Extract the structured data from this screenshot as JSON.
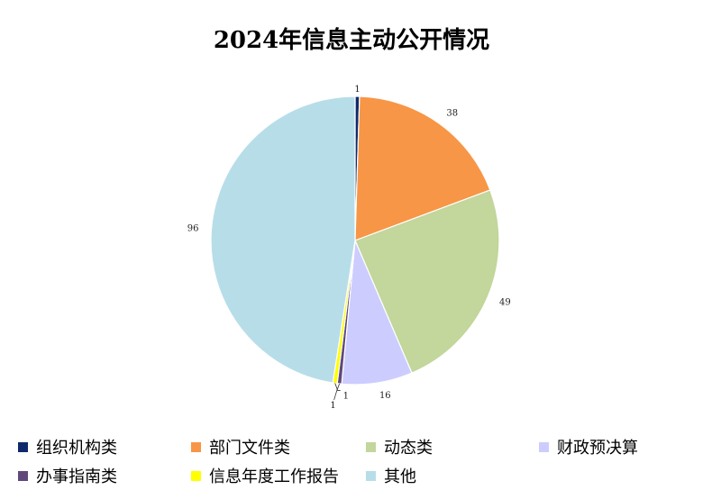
{
  "chart_data": {
    "type": "pie",
    "title": "2024年信息主动公开情况",
    "categories": [
      "组织机构类",
      "部门文件类",
      "动态类",
      "财政预决算",
      "办事指南类",
      "信息年度工作报告",
      "其他"
    ],
    "values": [
      1,
      38,
      49,
      16,
      1,
      1,
      96
    ],
    "colors": [
      "#0f2a6b",
      "#f79646",
      "#c3d69b",
      "#ccccff",
      "#60497a",
      "#ffff00",
      "#b7dee8"
    ],
    "legend_position": "bottom"
  }
}
